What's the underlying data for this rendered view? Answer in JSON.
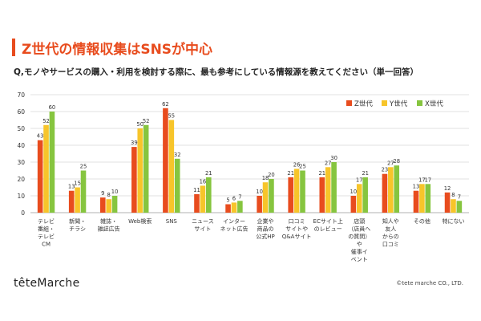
{
  "header": {
    "title": "Z世代の情報収集はSNSが中心",
    "question": "Q,モノやサービスの購入・利用を検討する際に、最も参考にしている情報源を教えてください（単一回答）"
  },
  "footer": {
    "logo": "têteMarche",
    "copyright": "©tete marche CO., LTD."
  },
  "colors": {
    "z": "#e84c1e",
    "y": "#f7c52a",
    "x": "#86c53f",
    "grid": "#d9d9d9",
    "axis": "#999999"
  },
  "chart_data": {
    "type": "bar",
    "categories": [
      [
        "テレビ",
        "番組・",
        "テレビ",
        "CM"
      ],
      [
        "新聞・",
        "チラシ"
      ],
      [
        "雑誌・",
        "雑誌広告"
      ],
      [
        "Web検索"
      ],
      [
        "SNS"
      ],
      [
        "ニュース",
        "サイト"
      ],
      [
        "インター",
        "ネット広告"
      ],
      [
        "企業や",
        "商品の",
        "公式HP"
      ],
      [
        "口コミ",
        "サイトや",
        "Q&Aサイト"
      ],
      [
        "ECサイト上",
        "のレビュー"
      ],
      [
        "店頭",
        "（店員へ",
        "の質問）",
        "や",
        "催事イ",
        "ベント"
      ],
      [
        "知人や",
        "友人",
        "からの",
        "口コミ"
      ],
      [
        "その他"
      ],
      [
        "特にない"
      ]
    ],
    "series": [
      {
        "name": "Z世代",
        "values": [
          43,
          13,
          9,
          39,
          62,
          11,
          5,
          10,
          21,
          21,
          10,
          23,
          13,
          12
        ]
      },
      {
        "name": "Y世代",
        "values": [
          52,
          15,
          8,
          50,
          55,
          16,
          6,
          18,
          26,
          27,
          17,
          27,
          17,
          8
        ]
      },
      {
        "name": "X世代",
        "values": [
          60,
          25,
          10,
          52,
          32,
          21,
          7,
          20,
          25,
          30,
          21,
          28,
          17,
          7
        ]
      }
    ],
    "ylim": [
      0,
      70
    ],
    "yticks": [
      0,
      10,
      20,
      30,
      40,
      50,
      60,
      70
    ],
    "grid": true,
    "legend": "top-right"
  }
}
